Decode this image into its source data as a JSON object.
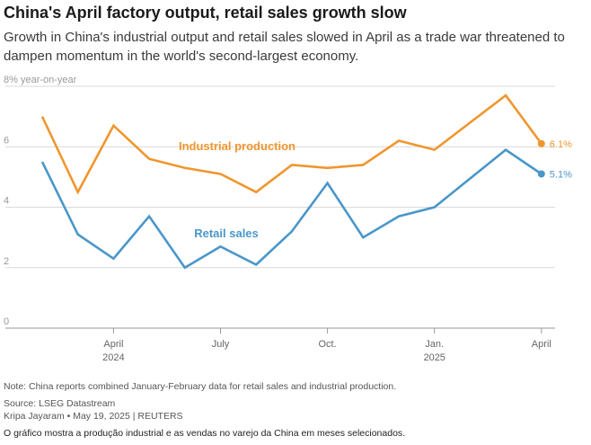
{
  "title": "China's April factory output, retail sales growth slow",
  "subtitle": "Growth in China's industrial output and retail sales slowed in April as a trade war threatened to dampen momentum in the world's second-largest economy.",
  "note": "Note: China reports combined January-February data for retail sales and industrial production.",
  "source": "Source: LSEG Datastream",
  "byline": "Kripa Jayaram • May 19, 2025 | REUTERS",
  "caption": "O gráfico mostra a produção industrial e as vendas no varejo da China em meses selecionados.",
  "chart_data": {
    "type": "line",
    "ylabel": "8% year-on-year",
    "ylim": [
      0,
      8
    ],
    "yticks": [
      {
        "value": 8,
        "label": "8% year-on-year"
      },
      {
        "value": 6,
        "label": "6"
      },
      {
        "value": 4,
        "label": "4"
      },
      {
        "value": 2,
        "label": "2"
      },
      {
        "value": 0,
        "label": "0"
      }
    ],
    "grid": true,
    "x": [
      "2024-01/02",
      "2024-03",
      "2024-04",
      "2024-05",
      "2024-06",
      "2024-07",
      "2024-08",
      "2024-09",
      "2024-10",
      "2024-11",
      "2024-12",
      "2025-01/02",
      "2025-03",
      "2025-04"
    ],
    "xticks": [
      {
        "index": 2,
        "label": "April",
        "year": "2024"
      },
      {
        "index": 5,
        "label": "July",
        "year": ""
      },
      {
        "index": 8,
        "label": "Oct.",
        "year": ""
      },
      {
        "index": 11,
        "label": "Jan.",
        "year": "2025"
      },
      {
        "index": 14,
        "label": "April",
        "year": ""
      }
    ],
    "x_positions": [
      0,
      1,
      2,
      3,
      4,
      5,
      6,
      7,
      8,
      9,
      10,
      11,
      13,
      14
    ],
    "series": [
      {
        "name": "Industrial production",
        "color": "#f0962e",
        "values": [
          7.0,
          4.5,
          6.7,
          5.6,
          5.3,
          5.1,
          4.5,
          5.4,
          5.3,
          5.4,
          6.2,
          5.9,
          7.7,
          6.1
        ],
        "end_label": "6.1%"
      },
      {
        "name": "Retail sales",
        "color": "#4a97c9",
        "values": [
          5.5,
          3.1,
          2.3,
          3.7,
          2.0,
          2.7,
          2.1,
          3.2,
          4.8,
          3.0,
          3.7,
          4.0,
          5.9,
          5.1
        ],
        "end_label": "5.1%"
      }
    ]
  }
}
